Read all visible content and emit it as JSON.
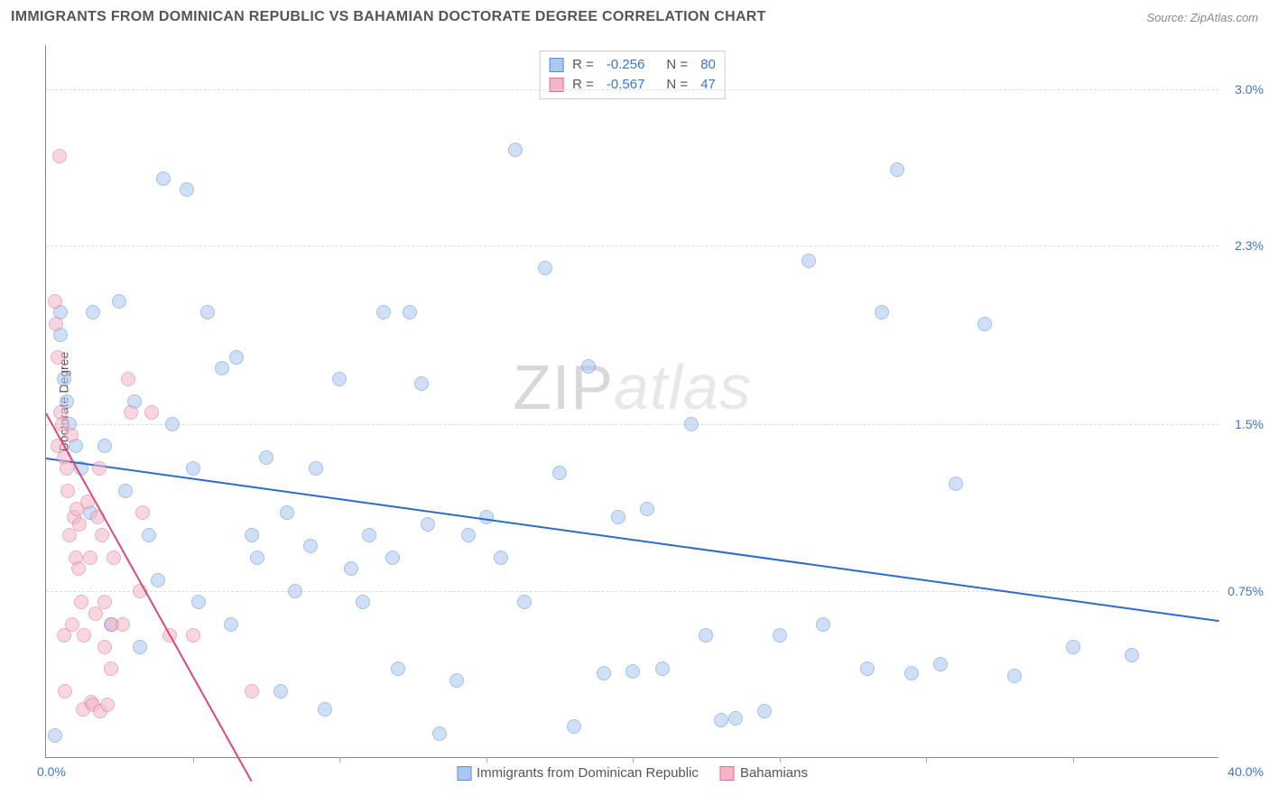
{
  "header": {
    "title": "IMMIGRANTS FROM DOMINICAN REPUBLIC VS BAHAMIAN DOCTORATE DEGREE CORRELATION CHART",
    "source": "Source: ZipAtlas.com"
  },
  "watermark": {
    "zip": "ZIP",
    "atlas": "atlas"
  },
  "chart": {
    "type": "scatter",
    "background_color": "#ffffff",
    "grid_color": "#dddddd",
    "axis_color": "#888888",
    "text_color": "#555555",
    "accent_color": "#3b74d8",
    "ylabel": "Doctorate Degree",
    "xlim": [
      0,
      40
    ],
    "ylim": [
      0,
      3.2
    ],
    "xtick_label_min": "0.0%",
    "xtick_label_max": "40.0%",
    "yticks": [
      {
        "v": 0.75,
        "label": "0.75%"
      },
      {
        "v": 1.5,
        "label": "1.5%"
      },
      {
        "v": 2.3,
        "label": "2.3%"
      },
      {
        "v": 3.0,
        "label": "3.0%"
      }
    ],
    "xtick_marks": [
      5,
      10,
      15,
      20,
      25,
      30,
      35
    ],
    "marker_radius": 8,
    "marker_opacity": 0.55,
    "series": [
      {
        "name": "Immigrants from Dominican Republic",
        "color_fill": "#a9c7ef",
        "color_stroke": "#5a8fd6",
        "r": -0.256,
        "n": 80,
        "trend": {
          "x1": 0,
          "y1": 1.35,
          "x2": 40,
          "y2": 0.62,
          "color": "#2b6bd1",
          "width": 2
        },
        "points": [
          [
            0.5,
            1.9
          ],
          [
            0.5,
            2.0
          ],
          [
            0.6,
            1.7
          ],
          [
            0.7,
            1.6
          ],
          [
            0.8,
            1.5
          ],
          [
            0.3,
            0.1
          ],
          [
            1.0,
            1.4
          ],
          [
            1.2,
            1.3
          ],
          [
            1.5,
            1.1
          ],
          [
            1.6,
            2.0
          ],
          [
            2.0,
            1.4
          ],
          [
            2.2,
            0.6
          ],
          [
            2.5,
            2.05
          ],
          [
            2.7,
            1.2
          ],
          [
            3.0,
            1.6
          ],
          [
            3.2,
            0.5
          ],
          [
            3.5,
            1.0
          ],
          [
            3.8,
            0.8
          ],
          [
            4.0,
            2.6
          ],
          [
            4.3,
            1.5
          ],
          [
            4.8,
            2.55
          ],
          [
            5.0,
            1.3
          ],
          [
            5.2,
            0.7
          ],
          [
            5.5,
            2.0
          ],
          [
            6.0,
            1.75
          ],
          [
            6.3,
            0.6
          ],
          [
            6.5,
            1.8
          ],
          [
            7.0,
            1.0
          ],
          [
            7.2,
            0.9
          ],
          [
            7.5,
            1.35
          ],
          [
            8.0,
            0.3
          ],
          [
            8.2,
            1.1
          ],
          [
            8.5,
            0.75
          ],
          [
            9.0,
            0.95
          ],
          [
            9.2,
            1.3
          ],
          [
            9.5,
            0.22
          ],
          [
            10.0,
            1.7
          ],
          [
            10.4,
            0.85
          ],
          [
            10.8,
            0.7
          ],
          [
            11.0,
            1.0
          ],
          [
            11.5,
            2.0
          ],
          [
            11.8,
            0.9
          ],
          [
            12.0,
            0.4
          ],
          [
            12.4,
            2.0
          ],
          [
            12.8,
            1.68
          ],
          [
            13.0,
            1.05
          ],
          [
            13.4,
            0.11
          ],
          [
            14.0,
            0.35
          ],
          [
            14.4,
            1.0
          ],
          [
            15.0,
            1.08
          ],
          [
            15.5,
            0.9
          ],
          [
            16.0,
            2.73
          ],
          [
            16.3,
            0.7
          ],
          [
            17.0,
            2.2
          ],
          [
            17.5,
            1.28
          ],
          [
            18.0,
            0.14
          ],
          [
            18.5,
            1.76
          ],
          [
            19.0,
            0.38
          ],
          [
            19.5,
            1.08
          ],
          [
            20.0,
            0.39
          ],
          [
            20.5,
            1.12
          ],
          [
            21.0,
            0.4
          ],
          [
            22.0,
            1.5
          ],
          [
            22.5,
            0.55
          ],
          [
            23.0,
            0.17
          ],
          [
            23.5,
            0.18
          ],
          [
            24.5,
            0.21
          ],
          [
            25.0,
            0.55
          ],
          [
            26.0,
            2.23
          ],
          [
            26.5,
            0.6
          ],
          [
            28.0,
            0.4
          ],
          [
            28.5,
            2.0
          ],
          [
            29.0,
            2.64
          ],
          [
            29.5,
            0.38
          ],
          [
            30.5,
            0.42
          ],
          [
            31.0,
            1.23
          ],
          [
            32.0,
            1.95
          ],
          [
            33.0,
            0.37
          ],
          [
            35.0,
            0.5
          ],
          [
            37.0,
            0.46
          ]
        ]
      },
      {
        "name": "Bahamians",
        "color_fill": "#f4b6c6",
        "color_stroke": "#e06e8e",
        "r": -0.567,
        "n": 47,
        "trend": {
          "x1": 0,
          "y1": 1.55,
          "x2": 7,
          "y2": -0.1,
          "color": "#d94a74",
          "width": 2
        },
        "points": [
          [
            0.3,
            2.05
          ],
          [
            0.35,
            1.95
          ],
          [
            0.4,
            1.8
          ],
          [
            0.4,
            1.4
          ],
          [
            0.45,
            2.7
          ],
          [
            0.5,
            1.55
          ],
          [
            0.55,
            1.5
          ],
          [
            0.6,
            1.35
          ],
          [
            0.6,
            0.55
          ],
          [
            0.65,
            0.3
          ],
          [
            0.7,
            1.3
          ],
          [
            0.75,
            1.2
          ],
          [
            0.8,
            1.0
          ],
          [
            0.85,
            1.45
          ],
          [
            0.9,
            0.6
          ],
          [
            0.95,
            1.08
          ],
          [
            1.0,
            0.9
          ],
          [
            1.05,
            1.12
          ],
          [
            1.1,
            0.85
          ],
          [
            1.15,
            1.05
          ],
          [
            1.2,
            0.7
          ],
          [
            1.25,
            0.22
          ],
          [
            1.3,
            0.55
          ],
          [
            1.4,
            1.15
          ],
          [
            1.5,
            0.9
          ],
          [
            1.55,
            0.25
          ],
          [
            1.6,
            0.24
          ],
          [
            1.7,
            0.65
          ],
          [
            1.75,
            1.08
          ],
          [
            1.8,
            1.3
          ],
          [
            1.85,
            0.21
          ],
          [
            1.9,
            1.0
          ],
          [
            2.0,
            0.5
          ],
          [
            2.0,
            0.7
          ],
          [
            2.1,
            0.24
          ],
          [
            2.2,
            0.4
          ],
          [
            2.25,
            0.6
          ],
          [
            2.3,
            0.9
          ],
          [
            2.6,
            0.6
          ],
          [
            2.8,
            1.7
          ],
          [
            2.9,
            1.55
          ],
          [
            3.2,
            0.75
          ],
          [
            3.3,
            1.1
          ],
          [
            3.6,
            1.55
          ],
          [
            4.2,
            0.55
          ],
          [
            5.0,
            0.55
          ],
          [
            7.0,
            0.3
          ]
        ]
      }
    ]
  },
  "legend_top": {
    "r_label": "R =",
    "n_label": "N ="
  },
  "legend_bottom": {
    "items": [
      {
        "label": "Immigrants from Dominican Republic",
        "fill": "#a9c7ef",
        "stroke": "#5a8fd6"
      },
      {
        "label": "Bahamians",
        "fill": "#f4b6c6",
        "stroke": "#e06e8e"
      }
    ]
  }
}
